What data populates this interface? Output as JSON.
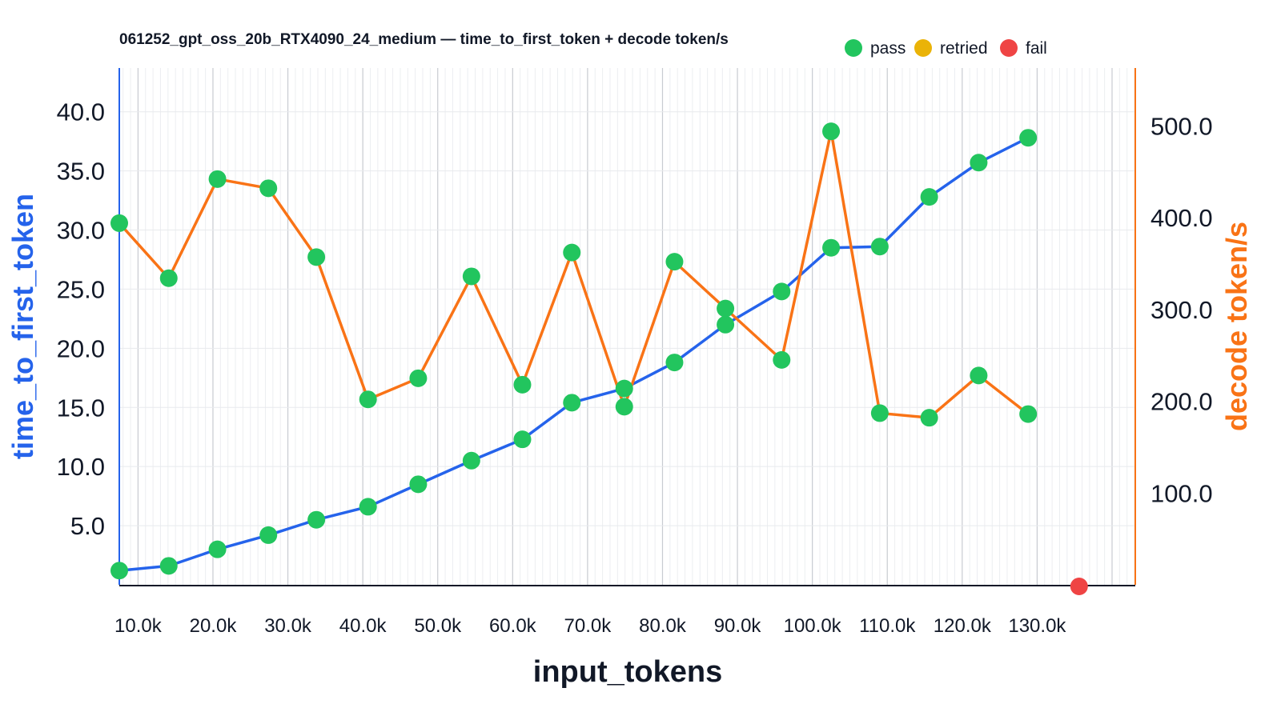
{
  "chart_data": {
    "type": "line",
    "title": "061252_gpt_oss_20b_RTX4090_24_medium — time_to_first_token + decode token/s",
    "xlabel": "input_tokens",
    "ylabel": "time_to_first_token",
    "y2label": "decode token/s",
    "xlim": [
      7.5,
      143.1
    ],
    "ylim": [
      0,
      43.7
    ],
    "y2lim": [
      0,
      563
    ],
    "x_unit": "k",
    "grid": true,
    "legend_placement": "top-right",
    "legend": [
      {
        "label": "pass",
        "color": "#22c55e"
      },
      {
        "label": "retried",
        "color": "#eab308"
      },
      {
        "label": "fail",
        "color": "#ef4444"
      }
    ],
    "x_ticks": [
      "10.0k",
      "20.0k",
      "30.0k",
      "40.0k",
      "50.0k",
      "60.0k",
      "70.0k",
      "80.0k",
      "90.0k",
      "100.0k",
      "110.0k",
      "120.0k",
      "130.0k"
    ],
    "x_tick_values": [
      10,
      20,
      30,
      40,
      50,
      60,
      70,
      80,
      90,
      100,
      110,
      120,
      130
    ],
    "y_ticks": [
      "5.0",
      "10.0",
      "15.0",
      "20.0",
      "25.0",
      "30.0",
      "35.0",
      "40.0"
    ],
    "y_tick_values": [
      5,
      10,
      15,
      20,
      25,
      30,
      35,
      40
    ],
    "y2_ticks": [
      "100.0",
      "200.0",
      "300.0",
      "400.0",
      "500.0"
    ],
    "y2_tick_values": [
      100,
      200,
      300,
      400,
      500
    ],
    "x": [
      7.5,
      14.1,
      20.6,
      27.4,
      33.8,
      40.7,
      47.4,
      54.5,
      61.3,
      67.9,
      74.9,
      81.6,
      88.4,
      95.9,
      102.5,
      109.0,
      115.6,
      122.2,
      128.8
    ],
    "series": [
      {
        "axis": "left",
        "color": "#2563eb",
        "values": [
          1.2,
          1.6,
          3.0,
          4.2,
          5.5,
          6.6,
          8.5,
          10.5,
          12.3,
          15.4,
          16.6,
          18.8,
          22.0,
          24.8,
          28.5,
          28.6,
          32.8,
          35.7,
          37.8
        ],
        "status": [
          "pass",
          "pass",
          "pass",
          "pass",
          "pass",
          "pass",
          "pass",
          "pass",
          "pass",
          "pass",
          "pass",
          "pass",
          "pass",
          "pass",
          "pass",
          "pass",
          "pass",
          "pass",
          "pass"
        ]
      },
      {
        "axis": "right",
        "color": "#f97316",
        "values": [
          394,
          334,
          442,
          432,
          357,
          202,
          225,
          336,
          218,
          362,
          194,
          352,
          301,
          245,
          494,
          187,
          182,
          228,
          186
        ],
        "status": [
          "pass",
          "pass",
          "pass",
          "pass",
          "pass",
          "pass",
          "pass",
          "pass",
          "pass",
          "pass",
          "pass",
          "pass",
          "pass",
          "pass",
          "pass",
          "pass",
          "pass",
          "pass",
          "pass"
        ]
      }
    ],
    "failed_points": [
      {
        "x": 135.6,
        "y": 0,
        "status": "fail"
      }
    ],
    "colors": {
      "pass": "#22c55e",
      "retried": "#eab308",
      "fail": "#ef4444",
      "left_axis": "#2563eb",
      "right_axis": "#f97316"
    }
  }
}
